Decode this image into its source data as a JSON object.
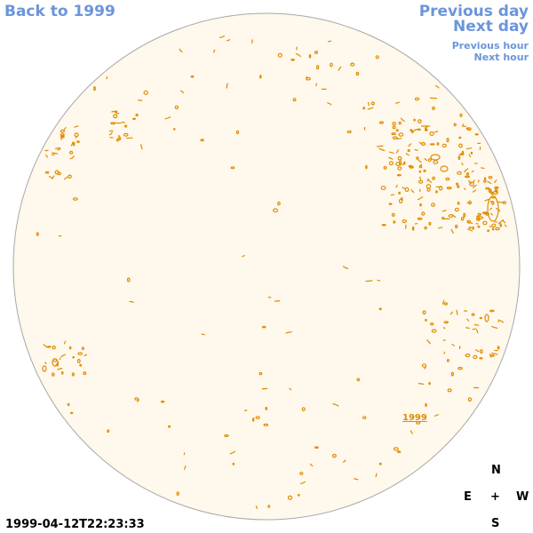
{
  "nav": {
    "back_label": "Back to 1999",
    "previous_day_label": "Previous day",
    "next_day_label": "Next day",
    "previous_hour_label": "Previous hour",
    "next_hour_label": "Next hour"
  },
  "compass": {
    "north": "N",
    "south": "S",
    "east": "E",
    "west": "W",
    "center": "+"
  },
  "timestamp": "1999-04-12T22:23:33",
  "feature_label": "1999",
  "colors": {
    "link": "#6b95dc",
    "disk_fill": "#fff8ec",
    "disk_edge": "#a8a8a8",
    "contour": "#e08c00"
  }
}
